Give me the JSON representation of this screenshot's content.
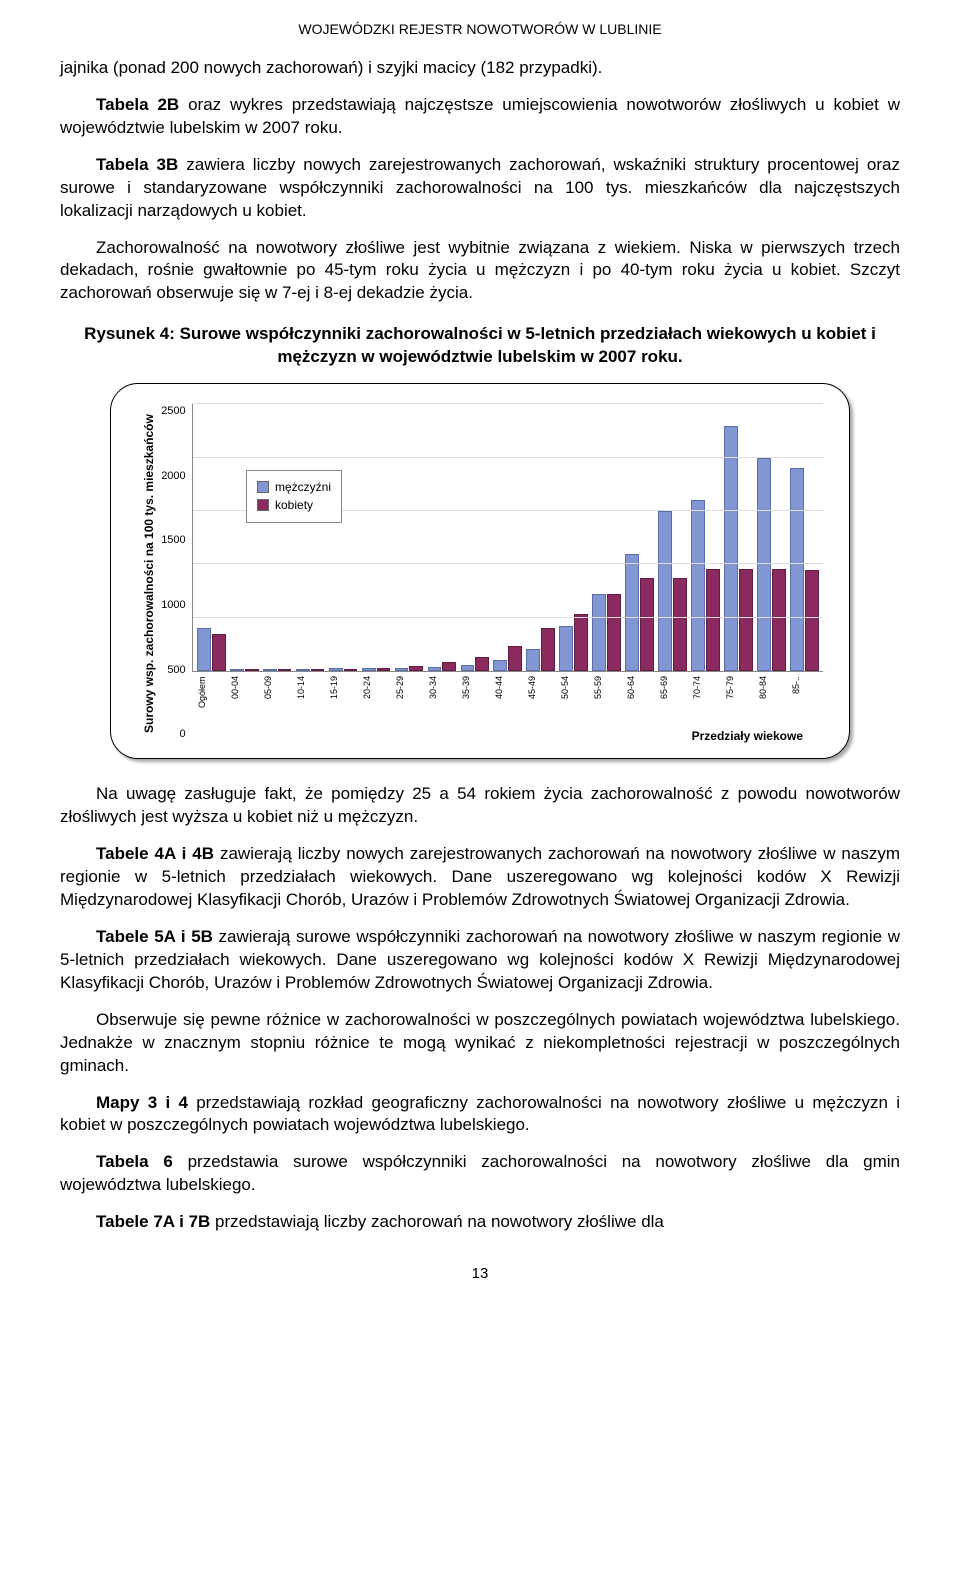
{
  "header": "WOJEWÓDZKI REJESTR NOWOTWORÓW  W LUBLINIE",
  "p1": "jajnika (ponad 200 nowych zachorowań) i szyjki macicy (182 przypadki).",
  "p2_lead": "Tabela 2B",
  "p2": " oraz wykres przedstawiają najczęstsze umiejscowienia nowotworów złośliwych u kobiet w województwie lubelskim w 2007 roku.",
  "p3_lead": "Tabela 3B",
  "p3": " zawiera liczby nowych zarejestrowanych zachorowań, wskaźniki struktury procentowej oraz surowe i standaryzowane współczynniki zachorowalności na 100 tys. mieszkańców dla najczęstszych lokalizacji narządowych u kobiet.",
  "p4": "Zachorowalność na nowotwory złośliwe jest wybitnie związana z wiekiem. Niska w pierwszych trzech dekadach, rośnie gwałtownie po 45-tym roku życia u mężczyzn i po 40-tym roku życia u kobiet. Szczyt zachorowań obserwuje się w 7-ej i 8-ej dekadzie życia.",
  "chart_title": "Rysunek 4: Surowe współczynniki zachorowalności w 5-letnich przedziałach wiekowych u kobiet i mężczyzn w województwie lubelskim w 2007 roku.",
  "chart": {
    "type": "bar",
    "y_label": "Surowy wsp. zachorowalności na 100 tys. mieszkańców",
    "x_label": "Przedziały wiekowe",
    "ylim": [
      0,
      2500
    ],
    "ytick_step": 500,
    "yticks": [
      "2500",
      "2000",
      "1500",
      "1000",
      "500",
      "0"
    ],
    "categories": [
      "Ogółem",
      "00-04",
      "05-09",
      "10-14",
      "15-19",
      "20-24",
      "25-29",
      "30-34",
      "35-39",
      "40-44",
      "45-49",
      "50-54",
      "55-59",
      "60-64",
      "65-69",
      "70-74",
      "75-79",
      "80-84",
      "85-.."
    ],
    "series": {
      "m": {
        "label": "mężczyźni",
        "color": "#8196d2",
        "values": [
          400,
          20,
          15,
          15,
          25,
          25,
          30,
          40,
          60,
          100,
          210,
          420,
          720,
          1100,
          1500,
          1600,
          2300,
          2000,
          1900
        ]
      },
      "f": {
        "label": "kobiety",
        "color": "#8a2a5e",
        "values": [
          350,
          20,
          12,
          15,
          20,
          25,
          50,
          80,
          130,
          230,
          400,
          530,
          720,
          870,
          870,
          960,
          960,
          960,
          950
        ]
      }
    },
    "background_color": "#ffffff",
    "grid_color": "#dddddd",
    "bar_border_m": "#5a6fa8",
    "bar_border_f": "#5e1d40"
  },
  "p5": "Na uwagę zasługuje fakt, że pomiędzy 25 a 54 rokiem życia zachorowalność z powodu nowotworów złośliwych jest wyższa u kobiet niż u mężczyzn.",
  "p6_lead": "Tabele 4A i 4B",
  "p6": " zawierają liczby nowych zarejestrowanych zachorowań na nowotwory złośliwe w naszym regionie w 5-letnich przedziałach wiekowych. Dane uszeregowano wg kolejności kodów X Rewizji Międzynarodowej Klasyfikacji Chorób, Urazów i Problemów Zdrowotnych Światowej Organizacji Zdrowia.",
  "p7_lead": "Tabele 5A i 5B",
  "p7": " zawierają surowe współczynniki zachorowań na nowotwory złośliwe w naszym regionie w 5-letnich przedziałach wiekowych. Dane uszeregowano wg kolejności kodów X Rewizji Międzynarodowej Klasyfikacji Chorób, Urazów i Problemów Zdrowotnych Światowej Organizacji Zdrowia.",
  "p8": "Obserwuje się pewne różnice w zachorowalności w poszczególnych powiatach województwa lubelskiego. Jednakże w znacznym stopniu różnice te mogą wynikać z niekompletności rejestracji w poszczególnych gminach.",
  "p9_lead": "Mapy 3 i 4",
  "p9": " przedstawiają rozkład geograficzny zachorowalności na nowotwory złośliwe u mężczyzn i kobiet w poszczególnych powiatach województwa lubelskiego.",
  "p10_lead": "Tabela 6",
  "p10": " przedstawia surowe współczynniki zachorowalności na nowotwory złośliwe dla gmin województwa lubelskiego.",
  "p11_lead": "Tabele 7A i 7B",
  "p11": " przedstawiają liczby zachorowań na nowotwory złośliwe dla",
  "page_num": "13"
}
